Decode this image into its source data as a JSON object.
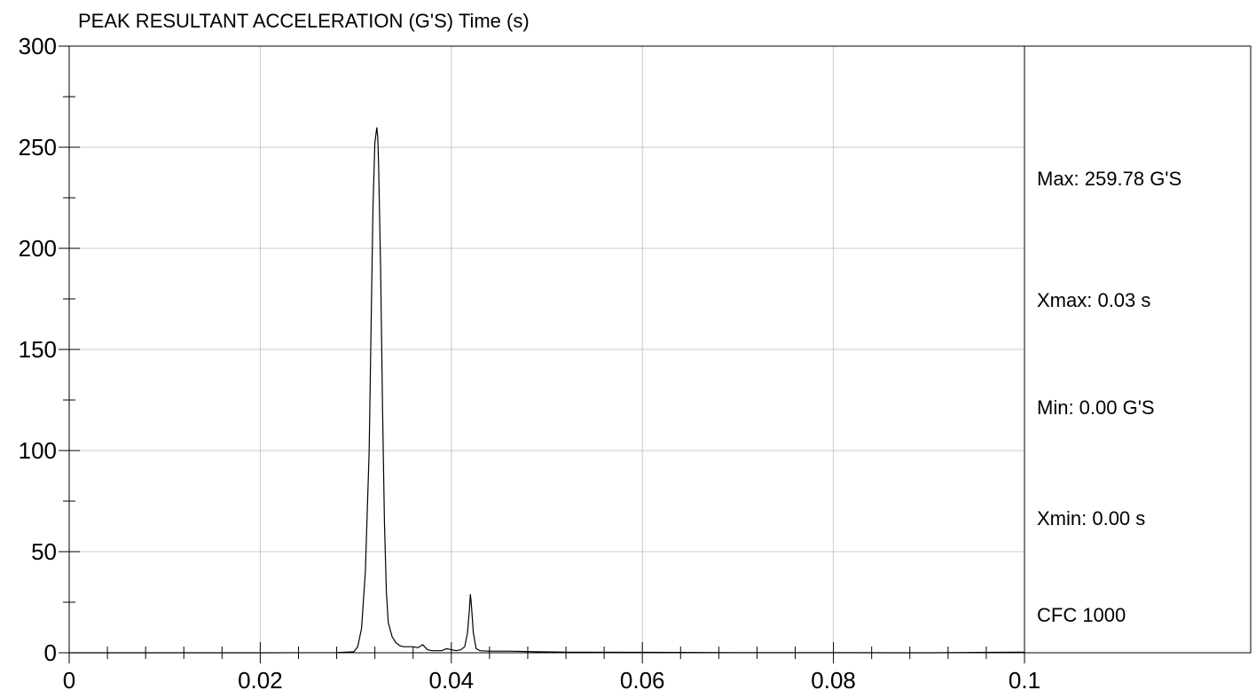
{
  "chart_data": {
    "type": "line",
    "title": "PEAK RESULTANT ACCELERATION (G'S) Time (s)",
    "xlabel": "",
    "ylabel": "",
    "xlim": [
      0,
      0.1
    ],
    "ylim": [
      0,
      300
    ],
    "grid": true,
    "x_ticks": [
      0,
      0.02,
      0.04,
      0.06,
      0.08,
      0.1
    ],
    "x_tick_labels": [
      "0",
      "0.02",
      "0.04",
      "0.06",
      "0.08",
      "0.1"
    ],
    "y_ticks": [
      0,
      50,
      100,
      150,
      200,
      250,
      300
    ],
    "y_tick_labels": [
      "0",
      "50",
      "100",
      "150",
      "200",
      "250",
      "300"
    ],
    "series": [
      {
        "color": "#000000",
        "x": [
          0,
          0.01,
          0.02,
          0.028,
          0.0298,
          0.0302,
          0.0306,
          0.031,
          0.0314,
          0.0316,
          0.0318,
          0.032,
          0.0322,
          0.0323,
          0.0324,
          0.0326,
          0.0328,
          0.033,
          0.0332,
          0.0334,
          0.0338,
          0.0342,
          0.0346,
          0.035,
          0.0354,
          0.036,
          0.0365,
          0.037,
          0.0375,
          0.038,
          0.039,
          0.0395,
          0.04,
          0.0405,
          0.041,
          0.0414,
          0.0417,
          0.0419,
          0.042,
          0.0421,
          0.0423,
          0.0426,
          0.043,
          0.044,
          0.046,
          0.049,
          0.052,
          0.06,
          0.07,
          0.08,
          0.09,
          0.1
        ],
        "y": [
          0,
          0,
          0,
          0.1,
          0.5,
          3,
          12,
          40,
          100,
          160,
          220,
          252,
          259.78,
          255,
          240,
          190,
          120,
          65,
          30,
          15,
          8,
          5,
          3.5,
          3,
          3,
          3,
          2.5,
          4,
          1.5,
          1,
          1,
          2,
          1.5,
          1,
          1.5,
          3,
          10,
          22,
          29,
          24,
          10,
          2,
          1,
          0.8,
          0.8,
          0.5,
          0.3,
          0.2,
          0.1,
          0.05,
          0.02,
          0.3
        ]
      }
    ],
    "stats": [
      "Max: 259.78 G'S",
      "Xmax: 0.03 s",
      "Min: 0.00 G'S",
      "Xmin: 0.00 s",
      "CFC 1000"
    ]
  }
}
